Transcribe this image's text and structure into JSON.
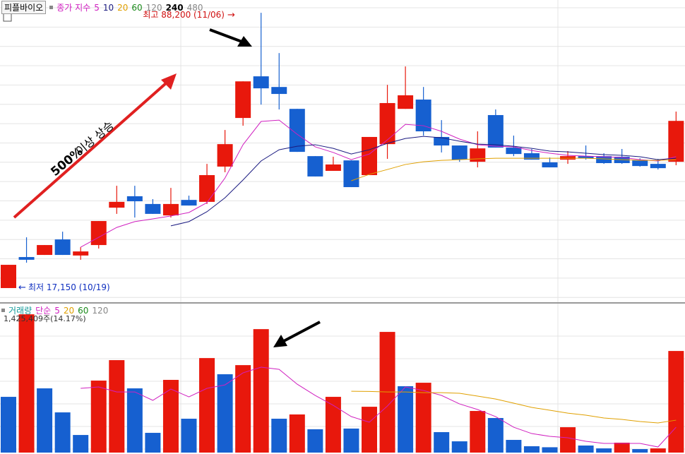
{
  "chart_data": [
    {
      "type": "candlestick",
      "title": "피플바이오",
      "indicator_label": "종가 지수",
      "open": [
        17150,
        25150,
        25700,
        29700,
        25550,
        28250,
        37900,
        40850,
        38850,
        35900,
        39900,
        39400,
        48500,
        61050,
        71800,
        69050,
        63400,
        51200,
        47400,
        50100,
        46300,
        54300,
        63400,
        65800,
        56150,
        53950,
        49750,
        61800,
        53400,
        51950,
        49600,
        50300,
        51200,
        51200,
        51050,
        50100,
        49200,
        49750
      ],
      "high": [
        23150,
        30250,
        28250,
        31700,
        27700,
        34450,
        43550,
        43550,
        40100,
        43000,
        41000,
        49200,
        57950,
        70500,
        88200,
        77800,
        63400,
        51200,
        51050,
        50100,
        56150,
        69600,
        74350,
        69050,
        60500,
        53950,
        57600,
        63250,
        56500,
        53050,
        50850,
        52500,
        53950,
        51950,
        53050,
        50650,
        50500,
        62700
      ],
      "low": [
        17150,
        23700,
        25700,
        25700,
        24450,
        27350,
        36300,
        35350,
        36300,
        35350,
        38450,
        38850,
        47050,
        59050,
        64500,
        63250,
        52300,
        45950,
        47400,
        43200,
        46300,
        50500,
        63400,
        56500,
        52150,
        49750,
        48300,
        53400,
        51200,
        50300,
        48300,
        49200,
        50300,
        49200,
        49200,
        48500,
        47750,
        48850
      ],
      "close": [
        23150,
        24450,
        28250,
        25700,
        26600,
        34450,
        39400,
        39550,
        36300,
        38850,
        38450,
        46300,
        54300,
        70500,
        68700,
        67250,
        52300,
        45950,
        49050,
        43200,
        56150,
        64900,
        66900,
        57600,
        53950,
        50300,
        53200,
        53400,
        51750,
        50300,
        48300,
        51200,
        50650,
        49400,
        49400,
        48650,
        48100,
        60300
      ],
      "up_color": "#e8180c",
      "down_color": "#1660d0",
      "ylim": [
        13500,
        91500
      ],
      "series": [
        {
          "name": "5",
          "color": "#d020c0",
          "values": [
            null,
            null,
            null,
            null,
            27700,
            30250,
            32800,
            34300,
            35000,
            35750,
            36650,
            39200,
            45550,
            54150,
            60150,
            60500,
            56850,
            53600,
            52150,
            50300,
            51750,
            55400,
            59400,
            59050,
            57600,
            55600,
            54150,
            53750,
            53600,
            52650,
            51950,
            51400,
            51200,
            51050,
            50850,
            50300,
            49950,
            51050
          ]
        },
        {
          "name": "10",
          "color": "#1a1a80",
          "values": [
            null,
            null,
            null,
            null,
            null,
            null,
            null,
            null,
            null,
            33200,
            34300,
            36850,
            40450,
            45050,
            49950,
            52850,
            53750,
            54150,
            53200,
            51750,
            52850,
            54500,
            55750,
            56300,
            55950,
            55050,
            54300,
            54150,
            53750,
            53200,
            52500,
            52300,
            51950,
            51600,
            51400,
            51050,
            50300,
            50650
          ]
        },
        {
          "name": "20",
          "color": "#e0a000",
          "values": [
            null,
            null,
            null,
            null,
            null,
            null,
            null,
            null,
            null,
            null,
            null,
            null,
            null,
            null,
            null,
            null,
            null,
            null,
            null,
            44850,
            46500,
            47750,
            49050,
            49750,
            50100,
            50300,
            50500,
            50650,
            50650,
            50650,
            50650,
            50650,
            50650,
            50500,
            50300,
            50100,
            50100,
            50300
          ]
        },
        {
          "name": "60",
          "color": "#1a8a1a"
        },
        {
          "name": "120",
          "color": "#888888"
        },
        {
          "name": "240",
          "color": "#000000"
        },
        {
          "name": "480",
          "color": "#888888"
        }
      ],
      "high_label": "최고 88,200 (11/06)",
      "high_arrow": "→",
      "low_label": "최저 17,150 (10/19)",
      "low_arrow": "←",
      "trend_pct": "500%",
      "trend_text": "이상 상승"
    },
    {
      "type": "bar",
      "title": "거래량",
      "indicator_label": "단순",
      "values": [
        782000,
        1940000,
        901000,
        564000,
        247000,
        1010000,
        1297000,
        901000,
        277000,
        1020000,
        475000,
        1326000,
        1099000,
        1227000,
        1732000,
        475000,
        535000,
        327000,
        782000,
        337000,
        643000,
        1693000,
        931000,
        980000,
        287000,
        158000,
        584000,
        485000,
        178000,
        89000,
        75000,
        356000,
        99000,
        59000,
        139000,
        49000,
        59000,
        1425409
      ],
      "up_color": "#e8180c",
      "down_color": "#1660d0",
      "ylim": [
        0,
        2090000
      ],
      "info": "1,425,409주(14.17%)",
      "series": [
        {
          "name": "5",
          "color": "#d020c0",
          "values": [
            null,
            null,
            null,
            null,
            901000,
            921000,
            851000,
            851000,
            733000,
            891000,
            782000,
            901000,
            950000,
            1119000,
            1198000,
            1168000,
            960000,
            802000,
            663000,
            505000,
            426000,
            653000,
            921000,
            871000,
            802000,
            683000,
            604000,
            505000,
            356000,
            267000,
            228000,
            208000,
            158000,
            129000,
            129000,
            129000,
            79000,
            356000
          ]
        },
        {
          "name": "20",
          "color": "#e0a000",
          "values": [
            null,
            null,
            null,
            null,
            null,
            null,
            null,
            null,
            null,
            null,
            null,
            null,
            null,
            null,
            null,
            null,
            null,
            null,
            null,
            861000,
            858000,
            851000,
            851000,
            841000,
            841000,
            832000,
            792000,
            752000,
            693000,
            634000,
            594000,
            554000,
            525000,
            485000,
            465000,
            436000,
            416000,
            455000
          ]
        },
        {
          "name": "60",
          "color": "#1a8a1a"
        },
        {
          "name": "120",
          "color": "#888888"
        }
      ]
    }
  ]
}
